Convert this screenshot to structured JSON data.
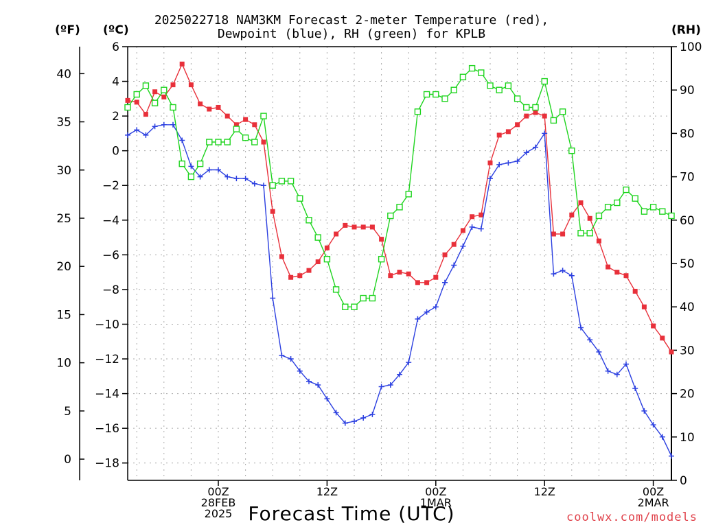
{
  "header": {
    "title_line1": "2025022718 NAM3KM Forecast 2-meter Temperature (red),",
    "title_line2": "Dewpoint (blue), RH (green) for KPLB",
    "unit_f": "(ºF)",
    "unit_c": "(ºC)",
    "unit_rh": "(RH)"
  },
  "footer": {
    "xlabel": "Forecast Time (UTC)",
    "credit": "coolwx.com/models"
  },
  "colors": {
    "temperature": "#e8303a",
    "dewpoint": "#2b3fe0",
    "rh": "#1ed41e",
    "grid": "#aaaaaa"
  },
  "chart_data": {
    "type": "line",
    "x_unit": "forecast hour from 2025-02-27 18Z",
    "x_range": [
      -4,
      56
    ],
    "x_ticks": [
      {
        "x": 6,
        "label": [
          "00Z",
          "28FEB",
          "2025"
        ]
      },
      {
        "x": 18,
        "label": [
          "12Z"
        ]
      },
      {
        "x": 30,
        "label": [
          "00Z",
          "1MAR"
        ]
      },
      {
        "x": 42,
        "label": [
          "12Z"
        ]
      },
      {
        "x": 54,
        "label": [
          "00Z",
          "2MAR"
        ]
      }
    ],
    "axes": {
      "celsius": {
        "range": [
          -19,
          6
        ],
        "ticks": [
          6,
          4,
          2,
          0,
          -2,
          -4,
          -6,
          -8,
          -10,
          -12,
          -14,
          -16,
          -18
        ]
      },
      "fahrenheit": {
        "ticks": [
          40,
          35,
          30,
          25,
          20,
          15,
          10,
          5,
          0
        ]
      },
      "rh": {
        "range": [
          0,
          100
        ],
        "ticks": [
          100,
          90,
          80,
          70,
          60,
          50,
          40,
          30,
          20,
          10,
          0
        ]
      }
    },
    "grid": true,
    "series": [
      {
        "key": "temperature",
        "axis": "celsius",
        "marker": "filled-square",
        "x": [
          -4,
          -3,
          -2,
          -1,
          0,
          1,
          2,
          3,
          4,
          5,
          6,
          7,
          8,
          9,
          10,
          11,
          12,
          13,
          14,
          15,
          16,
          17,
          18,
          19,
          20,
          21,
          22,
          23,
          24,
          25,
          26,
          27,
          28,
          29,
          30,
          31,
          32,
          33,
          34,
          35,
          36,
          37,
          38,
          39,
          40,
          41,
          42,
          43,
          44,
          45,
          46,
          47,
          48,
          49,
          50,
          51,
          52,
          53,
          54,
          55,
          56
        ],
        "values": [
          2.9,
          2.8,
          2.1,
          3.4,
          3.1,
          3.8,
          5.0,
          3.8,
          2.7,
          2.4,
          2.5,
          2.0,
          1.5,
          1.8,
          1.5,
          0.5,
          -3.5,
          -6.1,
          -7.3,
          -7.2,
          -6.9,
          -6.4,
          -5.6,
          -4.8,
          -4.3,
          -4.4,
          -4.4,
          -4.4,
          -5.1,
          -7.2,
          -7.0,
          -7.1,
          -7.6,
          -7.6,
          -7.3,
          -6.0,
          -5.4,
          -4.6,
          -3.8,
          -3.7,
          -0.7,
          0.9,
          1.1,
          1.5,
          2.0,
          2.2,
          2.0,
          -4.8,
          -4.8,
          -3.7,
          -3.0,
          -3.9,
          -5.2,
          -6.7,
          -7.0,
          -7.2,
          -8.1,
          -9.0,
          -10.1,
          -10.8,
          -11.6
        ]
      },
      {
        "key": "dewpoint",
        "axis": "celsius",
        "marker": "plus",
        "x": [
          -4,
          -3,
          -2,
          -1,
          0,
          1,
          2,
          3,
          4,
          5,
          6,
          7,
          8,
          9,
          10,
          11,
          12,
          13,
          14,
          15,
          16,
          17,
          18,
          19,
          20,
          21,
          22,
          23,
          24,
          25,
          26,
          27,
          28,
          29,
          30,
          31,
          32,
          33,
          34,
          35,
          36,
          37,
          38,
          39,
          40,
          41,
          42,
          43,
          44,
          45,
          46,
          47,
          48,
          49,
          50,
          51,
          52,
          53,
          54,
          55,
          56
        ],
        "values": [
          0.9,
          1.2,
          0.9,
          1.4,
          1.5,
          1.5,
          0.6,
          -0.9,
          -1.5,
          -1.1,
          -1.1,
          -1.5,
          -1.6,
          -1.6,
          -1.9,
          -2.0,
          -8.5,
          -11.8,
          -12.0,
          -12.7,
          -13.3,
          -13.5,
          -14.3,
          -15.1,
          -15.7,
          -15.6,
          -15.4,
          -15.2,
          -13.6,
          -13.5,
          -12.9,
          -12.2,
          -9.7,
          -9.3,
          -9.0,
          -7.6,
          -6.6,
          -5.5,
          -4.4,
          -4.5,
          -1.6,
          -0.8,
          -0.7,
          -0.6,
          -0.1,
          0.2,
          1.0,
          -7.1,
          -6.9,
          -7.2,
          -10.2,
          -10.9,
          -11.6,
          -12.7,
          -12.9,
          -12.3,
          -13.7,
          -15.0,
          -15.8,
          -16.5,
          -17.6
        ]
      },
      {
        "key": "rh",
        "axis": "rh",
        "marker": "open-square",
        "x": [
          -4,
          -3,
          -2,
          -1,
          0,
          1,
          2,
          3,
          4,
          5,
          6,
          7,
          8,
          9,
          10,
          11,
          12,
          13,
          14,
          15,
          16,
          17,
          18,
          19,
          20,
          21,
          22,
          23,
          24,
          25,
          26,
          27,
          28,
          29,
          30,
          31,
          32,
          33,
          34,
          35,
          36,
          37,
          38,
          39,
          40,
          41,
          42,
          43,
          44,
          45,
          46,
          47,
          48,
          49,
          50,
          51,
          52,
          53,
          54,
          55,
          56
        ],
        "values": [
          86,
          89,
          91,
          87,
          90,
          86,
          73,
          70,
          73,
          78,
          78,
          78,
          81,
          79,
          78,
          84,
          68,
          69,
          69,
          65,
          60,
          56,
          51,
          44,
          40,
          40,
          42,
          42,
          51,
          61,
          63,
          66,
          85,
          89,
          89,
          88,
          90,
          93,
          95,
          94,
          91,
          90,
          91,
          88,
          86,
          86,
          92,
          83,
          85,
          76,
          57,
          57,
          61,
          63,
          64,
          67,
          65,
          62,
          63,
          62,
          61
        ]
      }
    ]
  }
}
